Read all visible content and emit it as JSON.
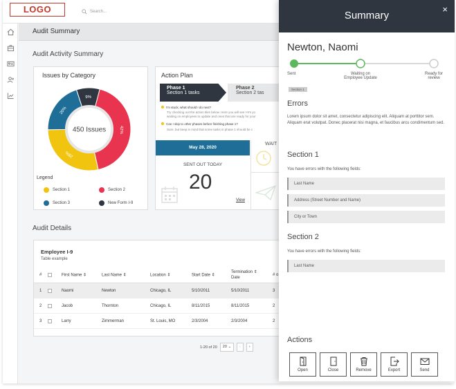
{
  "app": {
    "logo": "LOGO",
    "search_placeholder": "Search...",
    "page_title": "Audit Summary"
  },
  "nav": [
    "home-icon",
    "briefcase-icon",
    "id-card-icon",
    "user-add-icon",
    "report-icon"
  ],
  "activity": {
    "section_title": "Audit Activity Summary",
    "issues": {
      "title": "Issues by Category",
      "center_label": "450 Issues",
      "legend_title": "Legend",
      "legend": [
        {
          "label": "Section 1",
          "color": "#f1c40f"
        },
        {
          "label": "Section 2",
          "color": "#e8344e"
        },
        {
          "label": "Section 3",
          "color": "#1e6e97"
        },
        {
          "label": "New Form I-9",
          "color": "#2f3640"
        }
      ]
    },
    "action_plan": {
      "title": "Action Plan",
      "phase1_title": "Phase 1",
      "phase1_sub": "Section 1 tasks",
      "phase2_title": "Phase 2",
      "phase2_sub": "Section 2 tas",
      "q1": "I'm stuck, what should I do next?",
      "a1a": "Try checking out the action tiles below. Here you will see I-9's yo",
      "a1b": "waiting on employees to update and ones that are ready for your",
      "q2": "Can I skip to other phases before finishing phase 1?",
      "a2": "Sure, but keep in mind that some tasks in phase 1 should be c",
      "date": "May 28, 2020",
      "sent_label": "SENT OUT TODAY",
      "sent_count": "20",
      "view_link": "View",
      "wait_label": "WAIT"
    }
  },
  "chart_data": {
    "type": "pie",
    "title": "Issues by Category",
    "categories": [
      "Section 1",
      "Section 2",
      "Section 3",
      "New Form I-9"
    ],
    "values": [
      28,
      42,
      20,
      9
    ],
    "value_labels": [
      "28%",
      "42%",
      "20%",
      "9%"
    ],
    "colors": [
      "#f1c40f",
      "#e8344e",
      "#1e6e97",
      "#2f3640"
    ],
    "legend_position": "bottom"
  },
  "details": {
    "section_title": "Audit Details",
    "table_title": "Employee I-9",
    "table_sub": "Table example",
    "columns": [
      "#",
      "First Name",
      "Last Name",
      "Location",
      "Start Date",
      "Termination",
      "Date",
      "# o"
    ],
    "rows": [
      {
        "num": "1",
        "first": "Naomi",
        "last": "Newton",
        "location": "Chicago, IL",
        "start": "5/10/2011",
        "term": "5/10/2011",
        "extra": "3"
      },
      {
        "num": "2",
        "first": "Jacob",
        "last": "Thornton",
        "location": "Chicago, IL",
        "start": "8/11/2015",
        "term": "8/11/2015",
        "extra": "2"
      },
      {
        "num": "3",
        "first": "Larry",
        "last": "Zimmerman",
        "location": "St. Louis, MO",
        "start": "2/3/2004",
        "term": "2/3/2004",
        "extra": "2"
      }
    ],
    "pager_range": "1-20 of 20",
    "page_size": "20",
    "prev": "‹",
    "next": "›"
  },
  "summary": {
    "title": "Summary",
    "close": "×",
    "name": "Newton, Naomi",
    "steps": [
      "Sent",
      "Waiting on\nEmployee Update",
      "Ready for\nreview"
    ],
    "badge": "Section 1",
    "errors_title": "Errors",
    "errors_text": "Lorem ipsum dolor sit amet, consectetur adipiscing elit. Aliquam at porttitor sem. Aliquam erat volutpat. Donec placerat nisi magna, et faucibus arcu condimentum sed.",
    "section1_title": "Section 1",
    "section1_text": "You have errors with the following fields:",
    "section1_fields": [
      "Last Name",
      "Address (Street Number and Name)",
      "City or Town"
    ],
    "section2_title": "Section 2",
    "section2_text": "You have errors with the following fields:",
    "section2_fields": [
      "Last Name"
    ],
    "actions_title": "Actions",
    "actions": [
      "Open",
      "Close",
      "Remove",
      "Export",
      "Send"
    ]
  }
}
